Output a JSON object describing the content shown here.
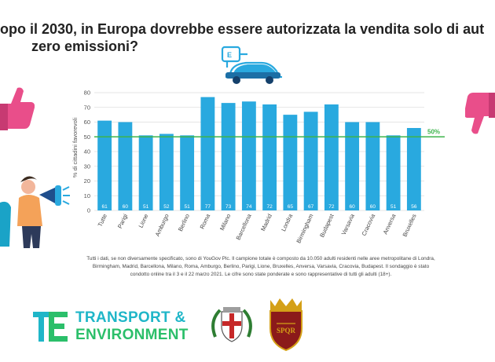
{
  "title": {
    "line1": "opo il 2030, in Europa dovrebbe essere autorizzata la vendita solo di aut",
    "line2": "zero emissioni?"
  },
  "chart_data": {
    "type": "bar",
    "ylabel": "% di cittadini favorevoli",
    "ylim": [
      0,
      80
    ],
    "yticks": [
      0,
      10,
      20,
      30,
      40,
      50,
      60,
      70,
      80
    ],
    "categories": [
      "Tutte",
      "Parigi",
      "Lione",
      "Amburgo",
      "Berlino",
      "Roma",
      "Milano",
      "Barcellona",
      "Madrid",
      "Londra",
      "Birmingham",
      "Budapest",
      "Varsavia",
      "Cracovia",
      "Anversa",
      "Bruxelles"
    ],
    "values": [
      61,
      60,
      51,
      52,
      51,
      77,
      73,
      74,
      72,
      65,
      67,
      72,
      60,
      60,
      51,
      56
    ],
    "reference_line": {
      "value": 50,
      "label": "50%"
    },
    "bar_color": "#29a9df",
    "reference_color": "#3cb44b",
    "grid": true
  },
  "footnote": {
    "line1": "Tutti i dati, se non diversamente specificato, sono di YouGov Plc. Il campione totale è composto da 10.050 adulti residenti nelle aree metropolitane di Londra,",
    "line2": "Birmingham, Madrid, Barcellona, Milano, Roma, Amburgo, Berlino, Parigi, Lione, Bruxelles, Anversa, Varsavia, Cracovia, Budapest. Il sondaggio è stato",
    "line3": "condotto online tra il 3 e il 22 marzo 2021. Le cifre sono state ponderate e sono rappresentative di tutti gli adulti (18+)."
  },
  "logo": {
    "line1": "TRANSPORT &",
    "line2": "ENVIRONMENT",
    "color_blue": "#1fb6c8",
    "color_green": "#2bbf6a"
  },
  "icons": [
    "ev-charging-car-icon",
    "thumbs-up-icon",
    "thumbs-down-icon",
    "megaphone-person-icon",
    "milano-crest-icon",
    "roma-crest-icon"
  ]
}
